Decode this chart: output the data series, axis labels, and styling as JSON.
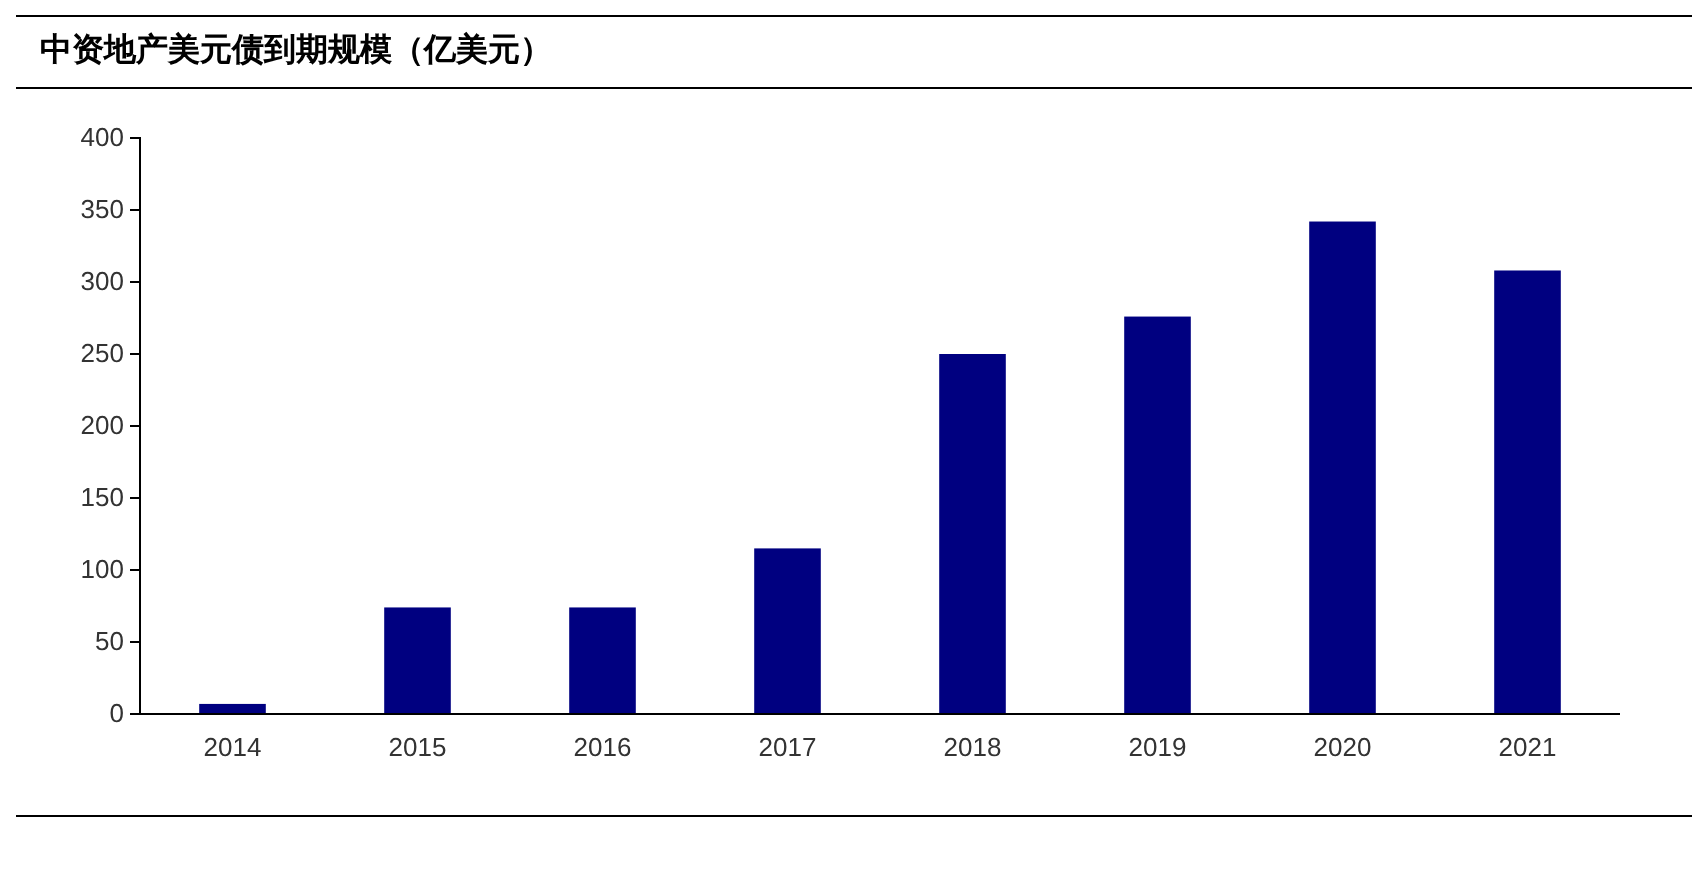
{
  "chart_data": {
    "type": "bar",
    "title": "中资地产美元债到期规模（亿美元）",
    "categories": [
      "2014",
      "2015",
      "2016",
      "2017",
      "2018",
      "2019",
      "2020",
      "2021"
    ],
    "values": [
      7,
      74,
      74,
      115,
      250,
      276,
      342,
      308
    ],
    "color": "#000080",
    "ylim": [
      0,
      400
    ],
    "yticks": [
      0,
      50,
      100,
      150,
      200,
      250,
      300,
      350,
      400
    ],
    "grid": false
  }
}
